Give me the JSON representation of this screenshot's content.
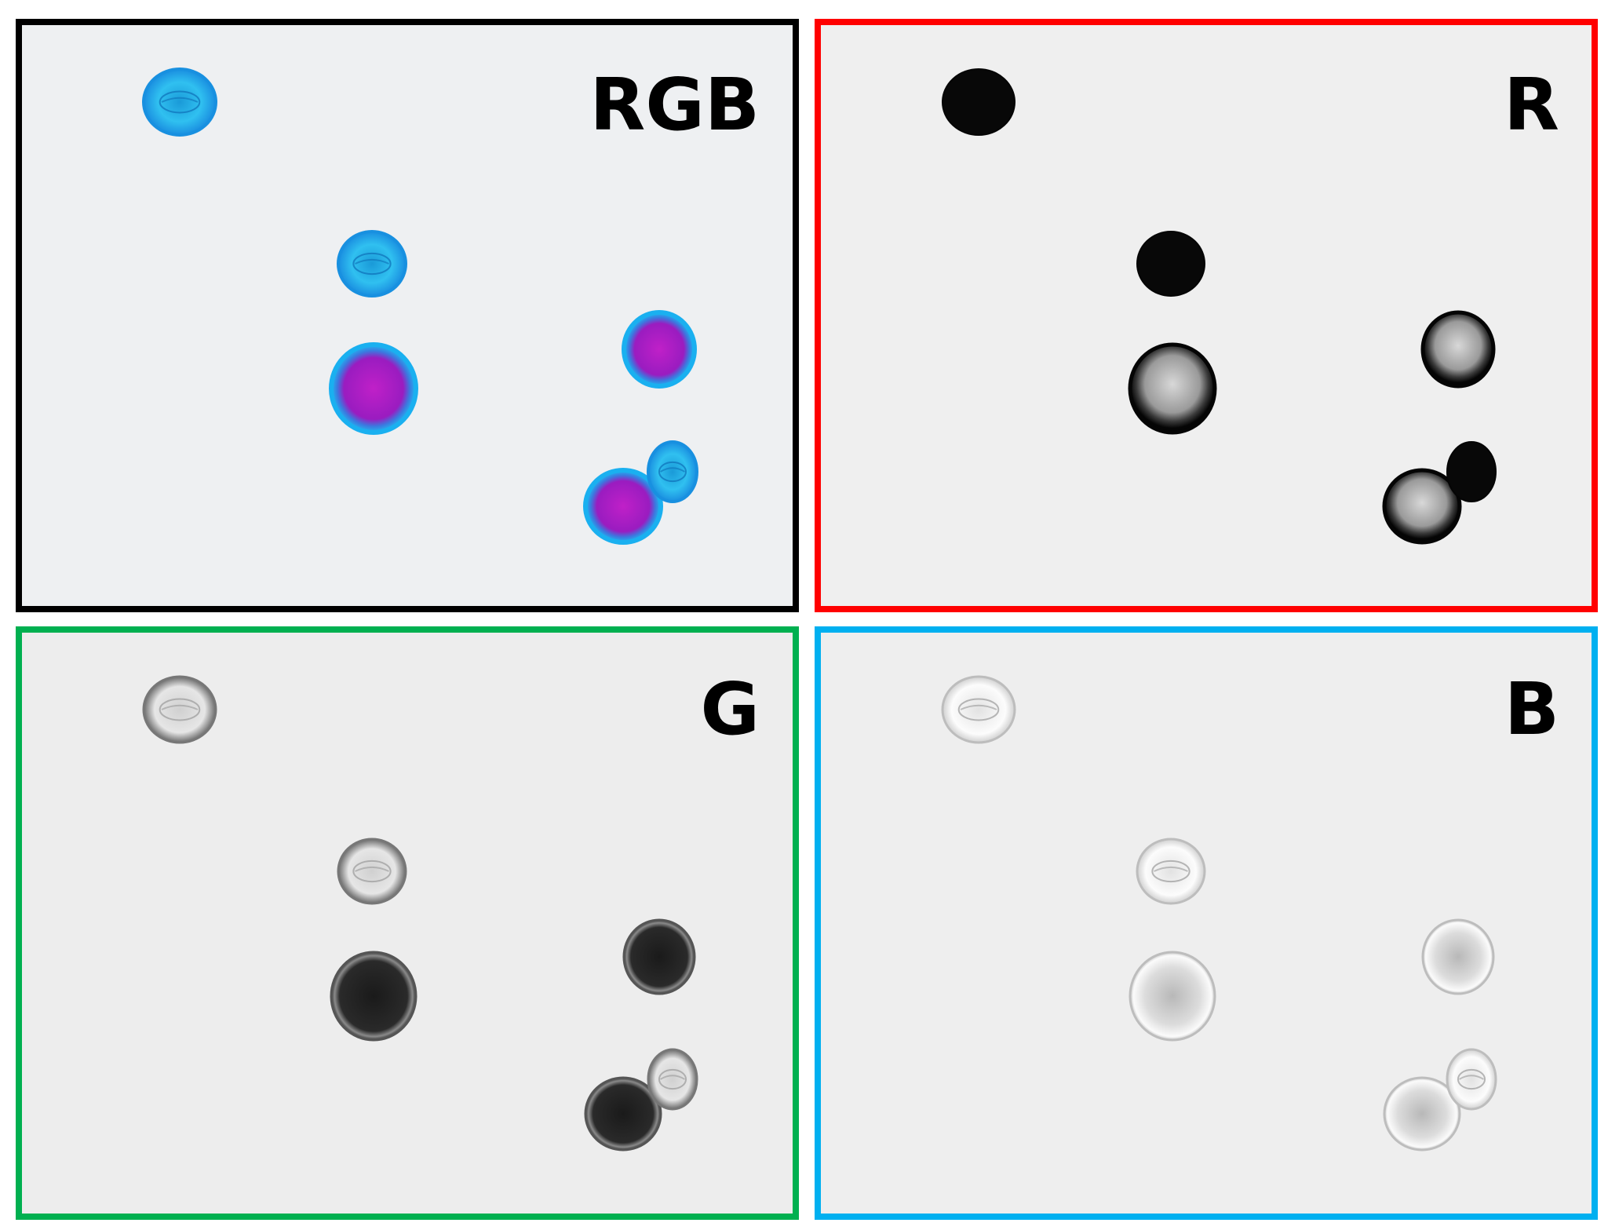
{
  "panels": [
    {
      "id": "rgb",
      "label": "RGB",
      "border_color": "#000000",
      "background": "#eef0f2",
      "channel": "rgb"
    },
    {
      "id": "r",
      "label": "R",
      "border_color": "#ff0000",
      "background": "#efefef",
      "channel": "r"
    },
    {
      "id": "g",
      "label": "G",
      "border_color": "#00b050",
      "background": "#ededed",
      "channel": "g"
    },
    {
      "id": "b",
      "label": "B",
      "border_color": "#00b0f0",
      "background": "#eeeeee",
      "channel": "b"
    }
  ],
  "colors": {
    "rgb_nonviable_fill": "#2ec4f0",
    "rgb_viable_core": "#b020c0",
    "rgb_rim": "#1aa0e8",
    "r_dark": "#080808",
    "g_dark": "#151515",
    "b_light": "#fafafa"
  }
}
